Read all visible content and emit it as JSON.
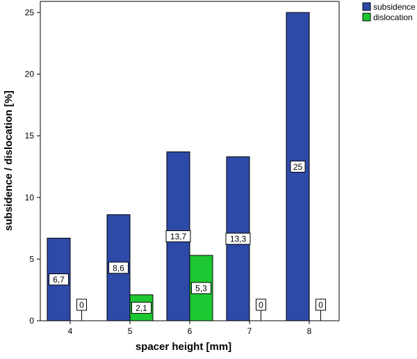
{
  "chart_data": {
    "type": "bar",
    "xlabel": "spacer height [mm]",
    "ylabel": "subsidence / dislocation [%]",
    "categories": [
      "4",
      "5",
      "6",
      "7",
      "8"
    ],
    "ylim": [
      0,
      25.9
    ],
    "yticks": [
      0,
      5,
      10,
      15,
      20,
      25
    ],
    "grid": false,
    "legend_position": "top-right",
    "series": [
      {
        "name": "subsidence",
        "color": "#2d4aa8",
        "values": [
          6.7,
          8.6,
          13.7,
          13.3,
          25
        ],
        "labels": [
          "6,7",
          "8,6",
          "13,7",
          "13,3",
          "25"
        ]
      },
      {
        "name": "dislocation",
        "color": "#1ec832",
        "values": [
          0,
          2.1,
          5.3,
          0,
          0
        ],
        "labels": [
          "0",
          "2,1",
          "5,3",
          "0",
          "0"
        ]
      }
    ]
  }
}
